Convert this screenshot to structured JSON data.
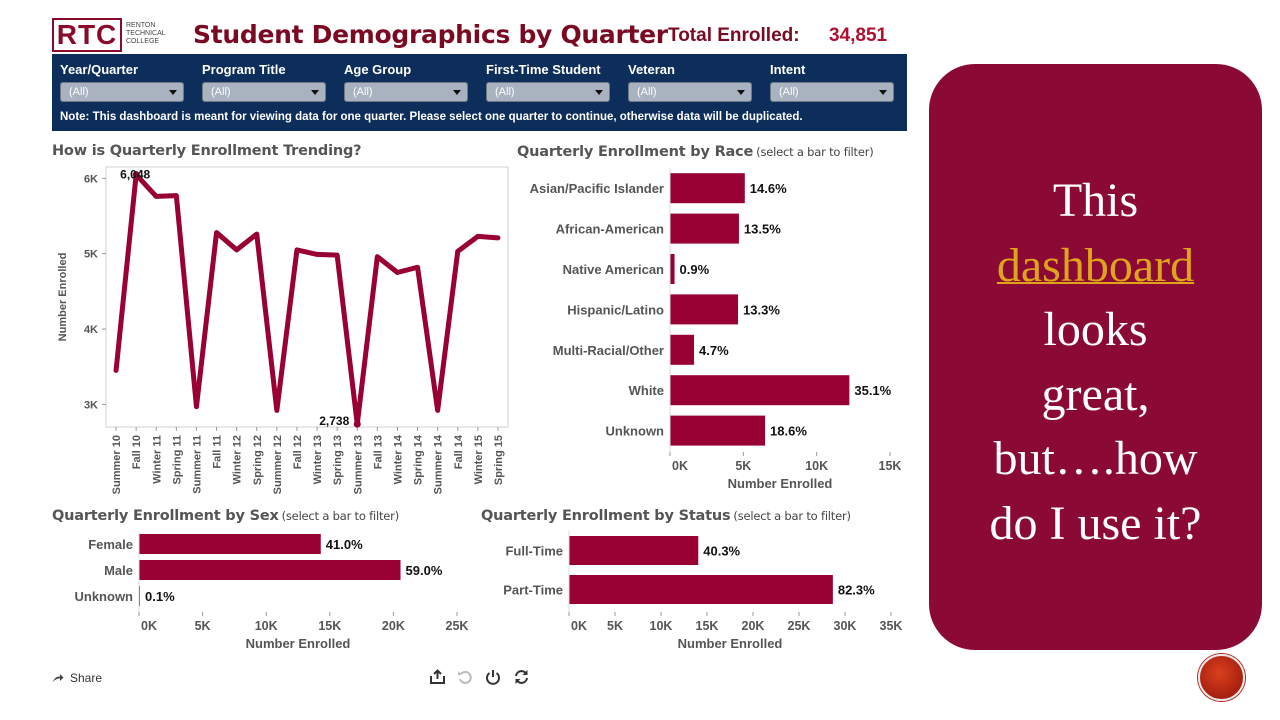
{
  "header": {
    "logo_text": "RTC",
    "logo_sub": [
      "RENTON",
      "TECHNICAL",
      "COLLEGE"
    ],
    "title": "Student Demographics by Quarter",
    "total_label": "Total Enrolled:",
    "total_value": "34,851"
  },
  "filters": [
    {
      "label": "Year/Quarter",
      "value": "(All)"
    },
    {
      "label": "Program Title",
      "value": "(All)"
    },
    {
      "label": "Age Group",
      "value": "(All)"
    },
    {
      "label": "First-Time Student",
      "value": "(All)"
    },
    {
      "label": "Veteran",
      "value": "(All)"
    },
    {
      "label": "Intent",
      "value": "(All)"
    }
  ],
  "filter_note": "Note: This dashboard is meant for viewing data for one quarter. Please select one quarter to continue, otherwise data will be duplicated.",
  "sections": {
    "trend": {
      "title": "How is Quarterly Enrollment Trending?"
    },
    "race": {
      "title": "Quarterly Enrollment by Race",
      "hint": "(select a bar to filter)"
    },
    "sex": {
      "title": "Quarterly Enrollment by Sex",
      "hint": "(select a bar to filter)"
    },
    "status": {
      "title": "Quarterly Enrollment by Status",
      "hint": "(select a bar to filter)"
    }
  },
  "colors": {
    "bar": "#990033",
    "line": "#990033",
    "navy": "#0d2e5a",
    "callout": "#8b0a35",
    "link": "#e0a41a"
  },
  "chart_data": [
    {
      "id": "trend",
      "type": "line",
      "ylabel": "Number Enrolled",
      "ylim": [
        2700,
        6150
      ],
      "y_ticks": [
        3000,
        4000,
        5000,
        6000
      ],
      "y_tick_labels": [
        "3K",
        "4K",
        "5K",
        "6K"
      ],
      "x": [
        "Summer 10",
        "Fall 10",
        "Winter 11",
        "Spring 11",
        "Summer 11",
        "Fall 11",
        "Winter 12",
        "Spring 12",
        "Summer 12",
        "Fall 12",
        "Winter 13",
        "Spring 13",
        "Summer 13",
        "Fall 13",
        "Winter 14",
        "Spring 14",
        "Summer 14",
        "Fall 14",
        "Winter 15",
        "Spring 15"
      ],
      "values": [
        3450,
        6048,
        5760,
        5770,
        2970,
        5280,
        5050,
        5260,
        2920,
        5050,
        4990,
        4980,
        2738,
        4960,
        4750,
        4820,
        2920,
        5030,
        5230,
        5210
      ],
      "annotations": [
        {
          "x": "Fall 10",
          "label": "6,048"
        },
        {
          "x": "Summer 13",
          "label": "2,738"
        }
      ],
      "grid": false
    },
    {
      "id": "race",
      "type": "bar",
      "orientation": "horizontal",
      "xlabel": "Number Enrolled",
      "xlim": [
        0,
        15000
      ],
      "x_ticks": [
        0,
        5000,
        10000,
        15000
      ],
      "x_tick_labels": [
        "0K",
        "5K",
        "10K",
        "15K"
      ],
      "categories": [
        "Asian/Pacific Islander",
        "African-American",
        "Native American",
        "Hispanic/Latino",
        "Multi-Racial/Other",
        "White",
        "Unknown"
      ],
      "values": [
        5100,
        4700,
        310,
        4640,
        1640,
        12230,
        6480
      ],
      "labels": [
        "14.6%",
        "13.5%",
        "0.9%",
        "13.3%",
        "4.7%",
        "35.1%",
        "18.6%"
      ]
    },
    {
      "id": "sex",
      "type": "bar",
      "orientation": "horizontal",
      "xlabel": "Number Enrolled",
      "xlim": [
        0,
        25000
      ],
      "x_ticks": [
        0,
        5000,
        10000,
        15000,
        20000,
        25000
      ],
      "x_tick_labels": [
        "0K",
        "5K",
        "10K",
        "15K",
        "20K",
        "25K"
      ],
      "categories": [
        "Female",
        "Male",
        "Unknown"
      ],
      "values": [
        14290,
        20560,
        35
      ],
      "labels": [
        "41.0%",
        "59.0%",
        "0.1%"
      ]
    },
    {
      "id": "status",
      "type": "bar",
      "orientation": "horizontal",
      "xlabel": "Number Enrolled",
      "xlim": [
        0,
        35000
      ],
      "x_ticks": [
        0,
        5000,
        10000,
        15000,
        20000,
        25000,
        30000,
        35000
      ],
      "x_tick_labels": [
        "0K",
        "5K",
        "10K",
        "15K",
        "20K",
        "25K",
        "30K",
        "35K"
      ],
      "categories": [
        "Full-Time",
        "Part-Time"
      ],
      "values": [
        14050,
        28680
      ],
      "labels": [
        "40.3%",
        "82.3%"
      ]
    }
  ],
  "footer": {
    "share_label": "Share",
    "tools": [
      "download-icon",
      "undo-icon",
      "power-icon",
      "refresh-icon"
    ]
  },
  "callout": {
    "line1": "This",
    "link": "dashboard",
    "rest": [
      "looks",
      "great,",
      "but….how",
      "do I use it?"
    ]
  }
}
